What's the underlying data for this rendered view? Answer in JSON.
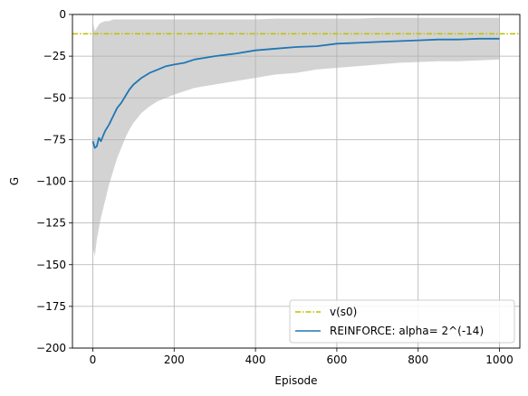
{
  "chart_data": {
    "type": "line",
    "title": "",
    "xlabel": "Episode",
    "ylabel": "G",
    "xlim": [
      -50,
      1050
    ],
    "ylim": [
      -200,
      0
    ],
    "xticks": [
      0,
      200,
      400,
      600,
      800,
      1000
    ],
    "yticks": [
      0,
      -25,
      -50,
      -75,
      -100,
      -125,
      -150,
      -175,
      -200
    ],
    "xtick_labels": [
      "0",
      "200",
      "400",
      "600",
      "800",
      "1000"
    ],
    "ytick_labels": [
      "0",
      "−25",
      "−50",
      "−75",
      "−100",
      "−125",
      "−150",
      "−175",
      "−200"
    ],
    "grid": true,
    "legend_position": "lower-right",
    "reference_line": {
      "name": "v(s0)",
      "y": -11.6,
      "color": "#bfbf00",
      "style": "dash-dot"
    },
    "series": [
      {
        "name": "REINFORCE: alpha= 2^(-14)",
        "color": "#1f77b4",
        "x": [
          0,
          5,
          10,
          15,
          20,
          30,
          40,
          50,
          60,
          70,
          80,
          90,
          100,
          120,
          140,
          160,
          180,
          200,
          225,
          250,
          275,
          300,
          350,
          400,
          450,
          500,
          550,
          600,
          650,
          700,
          750,
          800,
          850,
          900,
          950,
          1000
        ],
        "y": [
          -76,
          -80,
          -79,
          -74,
          -76,
          -70,
          -66,
          -61,
          -56,
          -53,
          -49,
          -45,
          -42,
          -38,
          -35,
          -33,
          -31,
          -30,
          -29,
          -27,
          -26,
          -25,
          -23.5,
          -21.5,
          -20.5,
          -19.5,
          -19,
          -17.5,
          -17,
          -16.5,
          -16,
          -15.5,
          -15,
          -15,
          -14.5,
          -14.5
        ]
      }
    ],
    "band": {
      "fill": "#d3d3d3",
      "x": [
        0,
        5,
        10,
        15,
        20,
        30,
        40,
        50,
        60,
        70,
        80,
        90,
        100,
        120,
        140,
        160,
        180,
        200,
        225,
        250,
        275,
        300,
        350,
        400,
        450,
        500,
        550,
        600,
        650,
        700,
        750,
        800,
        850,
        900,
        950,
        1000
      ],
      "upper": [
        -5,
        -10,
        -8,
        -6,
        -5,
        -4,
        -4,
        -3,
        -3,
        -3,
        -3,
        -3,
        -3,
        -3,
        -3,
        -3,
        -3,
        -3,
        -3,
        -3,
        -3,
        -3,
        -3,
        -3,
        -2.5,
        -2.5,
        -2.5,
        -2.5,
        -2.5,
        -2,
        -2,
        -2,
        -2,
        -2,
        -2,
        -2
      ],
      "lower": [
        -140,
        -145,
        -135,
        -128,
        -122,
        -112,
        -102,
        -94,
        -86,
        -80,
        -74,
        -69,
        -65,
        -59,
        -55,
        -52,
        -50,
        -48,
        -46,
        -44,
        -43,
        -42,
        -40,
        -38,
        -36,
        -35,
        -33,
        -32,
        -31,
        -30,
        -29,
        -28.5,
        -28,
        -28,
        -27.5,
        -27
      ]
    }
  }
}
